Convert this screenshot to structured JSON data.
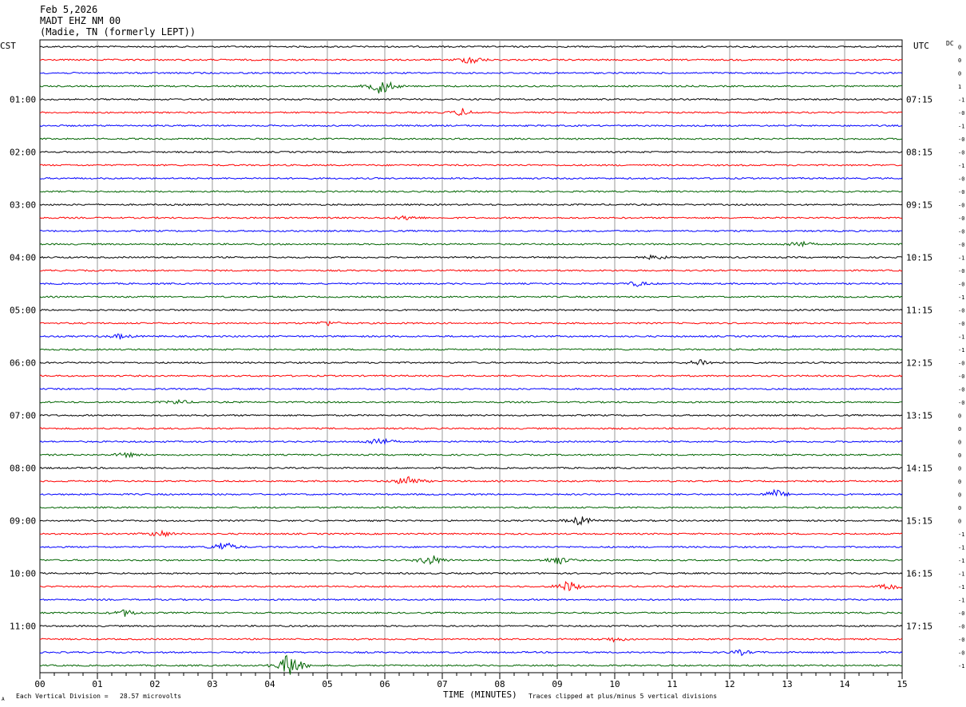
{
  "header": {
    "date": "Feb 5,2026",
    "station": "MADT EHZ NM 00",
    "location": "(Madie, TN (formerly LEPT))"
  },
  "chart_data": {
    "type": "line",
    "title": "Feb 5,2026",
    "left_timezone": "CST",
    "right_timezone": "UTC",
    "dc_label": "DC",
    "x_axis_title": "TIME (MINUTES)",
    "x_ticks": [
      "00",
      "01",
      "02",
      "03",
      "04",
      "05",
      "06",
      "07",
      "08",
      "09",
      "10",
      "11",
      "12",
      "13",
      "14",
      "15"
    ],
    "xlim": [
      0,
      15
    ],
    "left_hour_labels": [
      "01:00",
      "02:00",
      "03:00",
      "04:00",
      "05:00",
      "06:00",
      "07:00",
      "08:00",
      "09:00",
      "10:00",
      "11:00"
    ],
    "right_hour_labels": [
      "07:15",
      "08:15",
      "09:15",
      "10:15",
      "11:15",
      "12:15",
      "13:15",
      "14:15",
      "15:15",
      "16:15",
      "17:15"
    ],
    "trace_colors": [
      "#000000",
      "#ff0000",
      "#0000ff",
      "#006400"
    ],
    "trace_count": 48,
    "trace_minutes": 15,
    "dc_offsets": [
      "0",
      "0",
      "0",
      "1",
      "-1",
      "-0",
      "-1",
      "-0",
      "-0",
      "-1",
      "-0",
      "-0",
      "-0",
      "-0",
      "-0",
      "-0",
      "-1",
      "-0",
      "-0",
      "-1",
      "-0",
      "-0",
      "-1",
      "-1",
      "-0",
      "-0",
      "-0",
      "-0",
      "0",
      "0",
      "0",
      "0",
      "0",
      "0",
      "0",
      "0",
      "0",
      "-1",
      "-1",
      "-1",
      "-1",
      "-1",
      "-1",
      "-0",
      "-0",
      "-0",
      "-0",
      "-1"
    ],
    "events": [
      {
        "trace": 1,
        "minute": 7.5,
        "amp": 2.0
      },
      {
        "trace": 3,
        "minute": 5.95,
        "amp": 4.0
      },
      {
        "trace": 5,
        "minute": 7.35,
        "amp": 1.5
      },
      {
        "trace": 13,
        "minute": 6.4,
        "amp": 1.0
      },
      {
        "trace": 15,
        "minute": 13.2,
        "amp": 1.5
      },
      {
        "trace": 16,
        "minute": 10.7,
        "amp": 1.0
      },
      {
        "trace": 18,
        "minute": 10.4,
        "amp": 1.0
      },
      {
        "trace": 21,
        "minute": 5.0,
        "amp": 1.0
      },
      {
        "trace": 22,
        "minute": 1.4,
        "amp": 1.0
      },
      {
        "trace": 24,
        "minute": 11.5,
        "amp": 1.5
      },
      {
        "trace": 27,
        "minute": 2.4,
        "amp": 1.0
      },
      {
        "trace": 30,
        "minute": 5.9,
        "amp": 2.0
      },
      {
        "trace": 31,
        "minute": 1.5,
        "amp": 1.0
      },
      {
        "trace": 33,
        "minute": 6.4,
        "amp": 2.5
      },
      {
        "trace": 34,
        "minute": 12.8,
        "amp": 2.0
      },
      {
        "trace": 36,
        "minute": 9.4,
        "amp": 2.0
      },
      {
        "trace": 37,
        "minute": 2.1,
        "amp": 1.5
      },
      {
        "trace": 38,
        "minute": 3.2,
        "amp": 2.5
      },
      {
        "trace": 39,
        "minute": 6.8,
        "amp": 2.5
      },
      {
        "trace": 39,
        "minute": 9.0,
        "amp": 2.0
      },
      {
        "trace": 41,
        "minute": 9.2,
        "amp": 2.5
      },
      {
        "trace": 41,
        "minute": 14.8,
        "amp": 1.5
      },
      {
        "trace": 43,
        "minute": 1.5,
        "amp": 1.5
      },
      {
        "trace": 45,
        "minute": 10.0,
        "amp": 1.0
      },
      {
        "trace": 46,
        "minute": 12.2,
        "amp": 1.0
      },
      {
        "trace": 47,
        "minute": 4.35,
        "amp": 6.0
      }
    ]
  },
  "footer": {
    "left_note": "Each Vertical Division =   28.57 microvolts",
    "right_note": "Traces clipped at plus/minus 5 vertical divisions",
    "corner_mark": "A"
  }
}
